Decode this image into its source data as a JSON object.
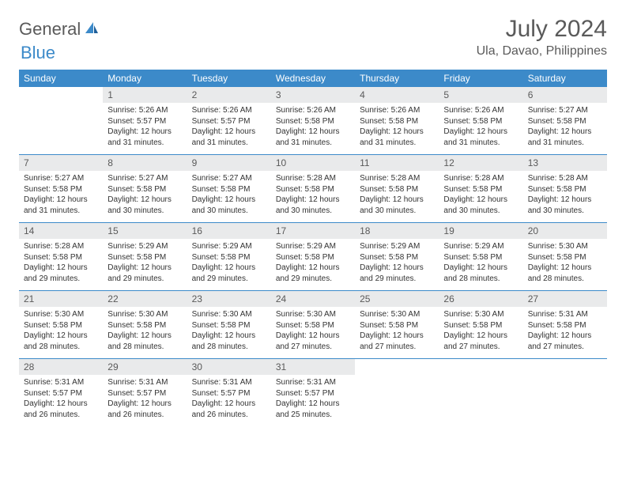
{
  "logo": {
    "text1": "General",
    "text2": "Blue"
  },
  "header": {
    "month": "July 2024",
    "location": "Ula, Davao, Philippines"
  },
  "dow": [
    "Sunday",
    "Monday",
    "Tuesday",
    "Wednesday",
    "Thursday",
    "Friday",
    "Saturday"
  ],
  "colors": {
    "header_bg": "#3c8ac9",
    "header_text": "#ffffff",
    "num_bg": "#e9eaeb",
    "border": "#3c8ac9",
    "text": "#333333",
    "muted": "#5a5a5a"
  },
  "weeks": [
    {
      "nums": [
        "",
        "1",
        "2",
        "3",
        "4",
        "5",
        "6"
      ],
      "cells": [
        null,
        {
          "sr": "Sunrise: 5:26 AM",
          "ss": "Sunset: 5:57 PM",
          "dl1": "Daylight: 12 hours",
          "dl2": "and 31 minutes."
        },
        {
          "sr": "Sunrise: 5:26 AM",
          "ss": "Sunset: 5:57 PM",
          "dl1": "Daylight: 12 hours",
          "dl2": "and 31 minutes."
        },
        {
          "sr": "Sunrise: 5:26 AM",
          "ss": "Sunset: 5:58 PM",
          "dl1": "Daylight: 12 hours",
          "dl2": "and 31 minutes."
        },
        {
          "sr": "Sunrise: 5:26 AM",
          "ss": "Sunset: 5:58 PM",
          "dl1": "Daylight: 12 hours",
          "dl2": "and 31 minutes."
        },
        {
          "sr": "Sunrise: 5:26 AM",
          "ss": "Sunset: 5:58 PM",
          "dl1": "Daylight: 12 hours",
          "dl2": "and 31 minutes."
        },
        {
          "sr": "Sunrise: 5:27 AM",
          "ss": "Sunset: 5:58 PM",
          "dl1": "Daylight: 12 hours",
          "dl2": "and 31 minutes."
        }
      ]
    },
    {
      "nums": [
        "7",
        "8",
        "9",
        "10",
        "11",
        "12",
        "13"
      ],
      "cells": [
        {
          "sr": "Sunrise: 5:27 AM",
          "ss": "Sunset: 5:58 PM",
          "dl1": "Daylight: 12 hours",
          "dl2": "and 31 minutes."
        },
        {
          "sr": "Sunrise: 5:27 AM",
          "ss": "Sunset: 5:58 PM",
          "dl1": "Daylight: 12 hours",
          "dl2": "and 30 minutes."
        },
        {
          "sr": "Sunrise: 5:27 AM",
          "ss": "Sunset: 5:58 PM",
          "dl1": "Daylight: 12 hours",
          "dl2": "and 30 minutes."
        },
        {
          "sr": "Sunrise: 5:28 AM",
          "ss": "Sunset: 5:58 PM",
          "dl1": "Daylight: 12 hours",
          "dl2": "and 30 minutes."
        },
        {
          "sr": "Sunrise: 5:28 AM",
          "ss": "Sunset: 5:58 PM",
          "dl1": "Daylight: 12 hours",
          "dl2": "and 30 minutes."
        },
        {
          "sr": "Sunrise: 5:28 AM",
          "ss": "Sunset: 5:58 PM",
          "dl1": "Daylight: 12 hours",
          "dl2": "and 30 minutes."
        },
        {
          "sr": "Sunrise: 5:28 AM",
          "ss": "Sunset: 5:58 PM",
          "dl1": "Daylight: 12 hours",
          "dl2": "and 30 minutes."
        }
      ]
    },
    {
      "nums": [
        "14",
        "15",
        "16",
        "17",
        "18",
        "19",
        "20"
      ],
      "cells": [
        {
          "sr": "Sunrise: 5:28 AM",
          "ss": "Sunset: 5:58 PM",
          "dl1": "Daylight: 12 hours",
          "dl2": "and 29 minutes."
        },
        {
          "sr": "Sunrise: 5:29 AM",
          "ss": "Sunset: 5:58 PM",
          "dl1": "Daylight: 12 hours",
          "dl2": "and 29 minutes."
        },
        {
          "sr": "Sunrise: 5:29 AM",
          "ss": "Sunset: 5:58 PM",
          "dl1": "Daylight: 12 hours",
          "dl2": "and 29 minutes."
        },
        {
          "sr": "Sunrise: 5:29 AM",
          "ss": "Sunset: 5:58 PM",
          "dl1": "Daylight: 12 hours",
          "dl2": "and 29 minutes."
        },
        {
          "sr": "Sunrise: 5:29 AM",
          "ss": "Sunset: 5:58 PM",
          "dl1": "Daylight: 12 hours",
          "dl2": "and 29 minutes."
        },
        {
          "sr": "Sunrise: 5:29 AM",
          "ss": "Sunset: 5:58 PM",
          "dl1": "Daylight: 12 hours",
          "dl2": "and 28 minutes."
        },
        {
          "sr": "Sunrise: 5:30 AM",
          "ss": "Sunset: 5:58 PM",
          "dl1": "Daylight: 12 hours",
          "dl2": "and 28 minutes."
        }
      ]
    },
    {
      "nums": [
        "21",
        "22",
        "23",
        "24",
        "25",
        "26",
        "27"
      ],
      "cells": [
        {
          "sr": "Sunrise: 5:30 AM",
          "ss": "Sunset: 5:58 PM",
          "dl1": "Daylight: 12 hours",
          "dl2": "and 28 minutes."
        },
        {
          "sr": "Sunrise: 5:30 AM",
          "ss": "Sunset: 5:58 PM",
          "dl1": "Daylight: 12 hours",
          "dl2": "and 28 minutes."
        },
        {
          "sr": "Sunrise: 5:30 AM",
          "ss": "Sunset: 5:58 PM",
          "dl1": "Daylight: 12 hours",
          "dl2": "and 28 minutes."
        },
        {
          "sr": "Sunrise: 5:30 AM",
          "ss": "Sunset: 5:58 PM",
          "dl1": "Daylight: 12 hours",
          "dl2": "and 27 minutes."
        },
        {
          "sr": "Sunrise: 5:30 AM",
          "ss": "Sunset: 5:58 PM",
          "dl1": "Daylight: 12 hours",
          "dl2": "and 27 minutes."
        },
        {
          "sr": "Sunrise: 5:30 AM",
          "ss": "Sunset: 5:58 PM",
          "dl1": "Daylight: 12 hours",
          "dl2": "and 27 minutes."
        },
        {
          "sr": "Sunrise: 5:31 AM",
          "ss": "Sunset: 5:58 PM",
          "dl1": "Daylight: 12 hours",
          "dl2": "and 27 minutes."
        }
      ]
    },
    {
      "nums": [
        "28",
        "29",
        "30",
        "31",
        "",
        "",
        ""
      ],
      "cells": [
        {
          "sr": "Sunrise: 5:31 AM",
          "ss": "Sunset: 5:57 PM",
          "dl1": "Daylight: 12 hours",
          "dl2": "and 26 minutes."
        },
        {
          "sr": "Sunrise: 5:31 AM",
          "ss": "Sunset: 5:57 PM",
          "dl1": "Daylight: 12 hours",
          "dl2": "and 26 minutes."
        },
        {
          "sr": "Sunrise: 5:31 AM",
          "ss": "Sunset: 5:57 PM",
          "dl1": "Daylight: 12 hours",
          "dl2": "and 26 minutes."
        },
        {
          "sr": "Sunrise: 5:31 AM",
          "ss": "Sunset: 5:57 PM",
          "dl1": "Daylight: 12 hours",
          "dl2": "and 25 minutes."
        },
        null,
        null,
        null
      ]
    }
  ]
}
